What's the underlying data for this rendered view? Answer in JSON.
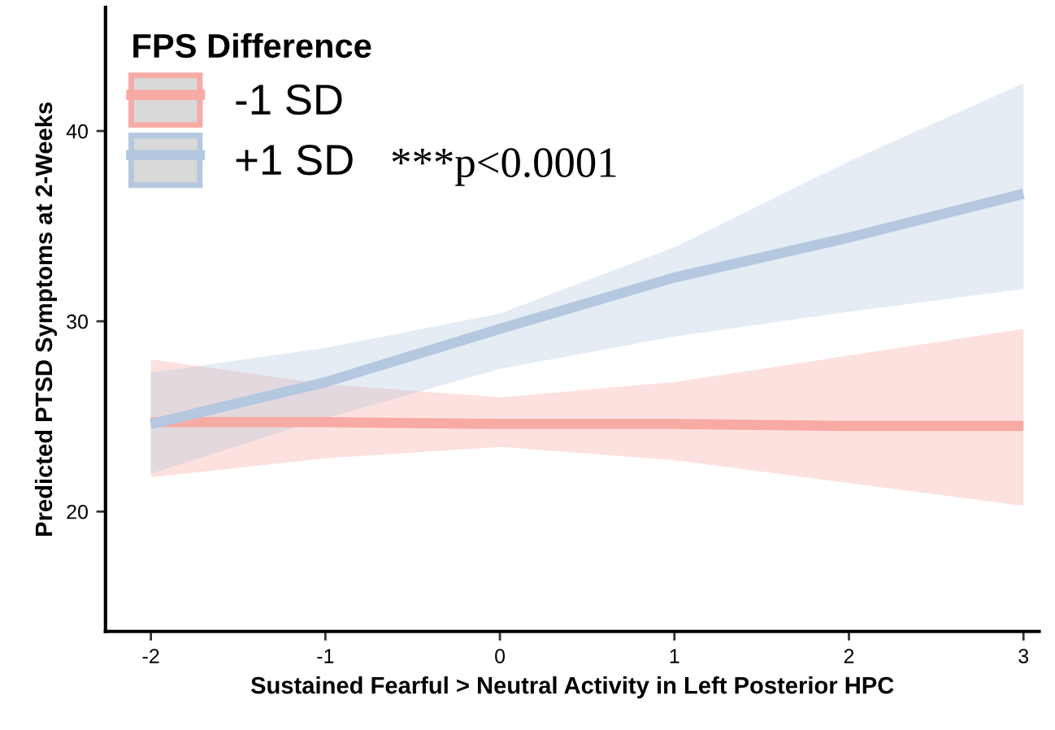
{
  "chart_data": {
    "type": "line",
    "xlabel": "Sustained Fearful > Neutral Activity in Left Posterior HPC",
    "ylabel": "Predicted PTSD Symptoms at 2-Weeks",
    "legend_title": "FPS Difference",
    "legend": "top left",
    "annotations": [
      "***p<0.0001"
    ],
    "x": [
      -2,
      -1,
      0,
      1,
      2,
      3
    ],
    "xlim": [
      -2.26,
      3.09
    ],
    "ylim": [
      13.7,
      46.5
    ],
    "xticks": [
      {
        "value": -2,
        "label": "-2"
      },
      {
        "value": -1,
        "label": "-1"
      },
      0,
      1,
      2,
      3
    ],
    "yticks": [
      20,
      30,
      40
    ],
    "grid": false,
    "marker": "none",
    "line_style": "solid",
    "series": [
      {
        "name": "-1 SD",
        "color": "#f8aaa4",
        "values": [
          24.7,
          24.7,
          24.6,
          24.6,
          24.5,
          24.5
        ],
        "lower": [
          21.8,
          22.8,
          23.4,
          22.7,
          21.5,
          20.3
        ],
        "upper": [
          28.0,
          26.7,
          26.0,
          26.8,
          28.2,
          29.6
        ]
      },
      {
        "name": "+1 SD",
        "color": "#b4c8e0",
        "values": [
          24.6,
          26.8,
          29.6,
          32.3,
          34.4,
          36.7
        ],
        "lower": [
          22.0,
          24.9,
          27.5,
          29.2,
          30.5,
          31.7
        ],
        "upper": [
          27.3,
          28.6,
          30.4,
          33.9,
          38.4,
          42.5
        ]
      }
    ]
  }
}
